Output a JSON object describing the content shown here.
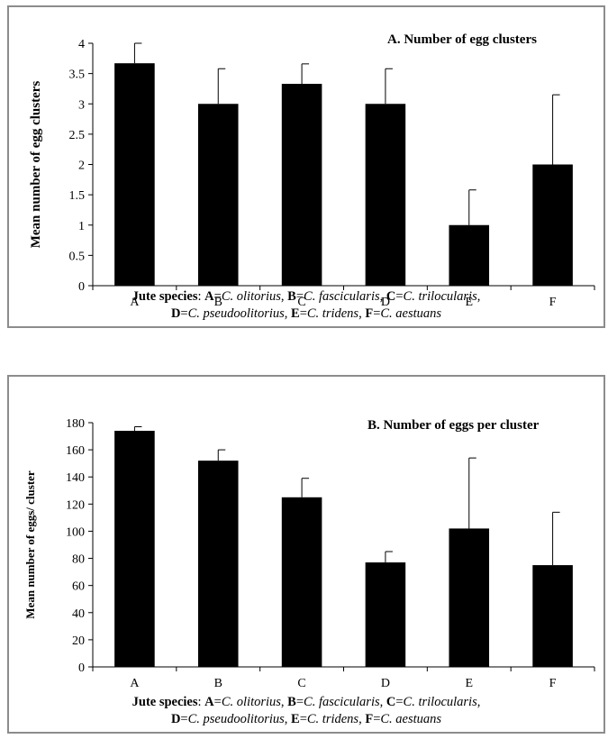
{
  "chart_data": [
    {
      "type": "bar",
      "title": "A. Number of egg clusters",
      "ylabel": "Mean number of egg clusters",
      "categories": [
        "A",
        "B",
        "C",
        "D",
        "E",
        "F"
      ],
      "values": [
        3.67,
        3.0,
        3.33,
        3.0,
        1.0,
        2.0
      ],
      "errors": [
        0.33,
        0.58,
        0.33,
        0.58,
        0.58,
        1.15
      ],
      "ylim": [
        0,
        4
      ],
      "yticks": [
        "0",
        "0.5",
        "1",
        "1.5",
        "2",
        "2.5",
        "3",
        "3.5",
        "4"
      ],
      "ytick_values": [
        0,
        0.5,
        1,
        1.5,
        2,
        2.5,
        3,
        3.5,
        4
      ],
      "bar_color": "#000000",
      "grid": false,
      "xnote": {
        "lead": "Jute species",
        "sep": ": ",
        "items": [
          {
            "key": "A",
            "eq": "=",
            "name": "C. olitorius",
            "tail": ", "
          },
          {
            "key": "B",
            "eq": "=",
            "name": "C. fascicularis",
            "tail": ", "
          },
          {
            "key": "C",
            "eq": "=",
            "name": "C. trilocularis",
            "tail": ","
          },
          {
            "key": "D",
            "eq": "=",
            "name": "C. pseudoolitorius",
            "tail": ", "
          },
          {
            "key": "E",
            "eq": "=",
            "name": "C. tridens",
            "tail": ", "
          },
          {
            "key": "F",
            "eq": "=",
            "name": "C. aestuans",
            "tail": ""
          }
        ]
      }
    },
    {
      "type": "bar",
      "title": "B. Number of eggs per cluster",
      "ylabel": "Mean number of eggs/ cluster",
      "categories": [
        "A",
        "B",
        "C",
        "D",
        "E",
        "F"
      ],
      "values": [
        174,
        152,
        125,
        77,
        102,
        75
      ],
      "errors": [
        3,
        8,
        14,
        8,
        52,
        39
      ],
      "ylim": [
        0,
        180
      ],
      "yticks": [
        "0",
        "20",
        "40",
        "60",
        "80",
        "100",
        "120",
        "140",
        "160",
        "180"
      ],
      "ytick_values": [
        0,
        20,
        40,
        60,
        80,
        100,
        120,
        140,
        160,
        180
      ],
      "bar_color": "#000000",
      "grid": false,
      "xnote": {
        "lead": "Jute species",
        "sep": ": ",
        "items": [
          {
            "key": "A",
            "eq": "=",
            "name": "C. olitorius",
            "tail": ", "
          },
          {
            "key": "B",
            "eq": "=",
            "name": "C. fascicularis",
            "tail": ", "
          },
          {
            "key": "C",
            "eq": "=",
            "name": "C. trilocularis",
            "tail": ","
          },
          {
            "key": "D",
            "eq": "=",
            "name": "C. pseudoolitorius",
            "tail": ", "
          },
          {
            "key": "E",
            "eq": "=",
            "name": "C. tridens",
            "tail": ", "
          },
          {
            "key": "F",
            "eq": "=",
            "name": "C. aestuans",
            "tail": ""
          }
        ]
      }
    }
  ]
}
